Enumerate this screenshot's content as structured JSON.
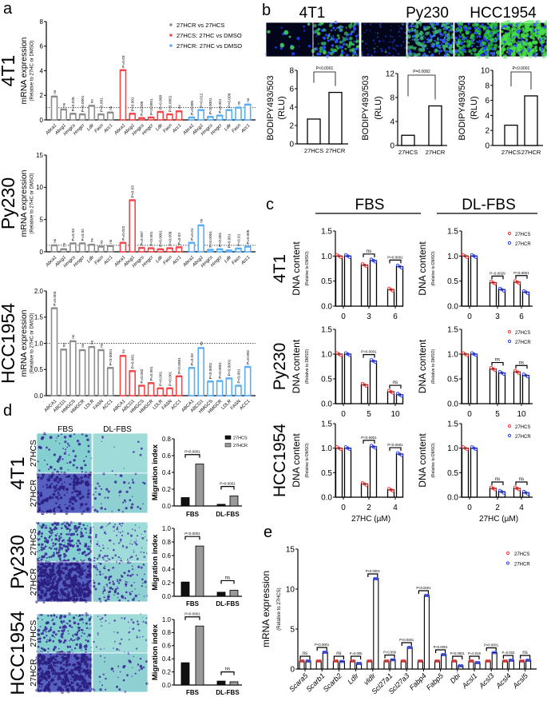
{
  "panel_labels": {
    "a": "a",
    "b": "b",
    "c": "c",
    "d": "d",
    "e": "e"
  },
  "chart_data": [
    {
      "id": "a",
      "type": "bar",
      "ylabel": "mRNA expression",
      "ylabel_sub": "(Relative to 27HC or DMSO)",
      "reference_line": 1,
      "legend": [
        {
          "name": "27HCR vs 27HCS",
          "color": "#8c8c8c"
        },
        {
          "name": "27HCS: 27HC vs DMSO",
          "color": "#f4474a"
        },
        {
          "name": "27HCR: 27HC vs DMSO",
          "color": "#5aaef5"
        }
      ],
      "rows": [
        {
          "cell_line": "4T1",
          "ylim": [
            0,
            8
          ],
          "ticks": [
            "0",
            "2",
            "4",
            "6",
            "8"
          ],
          "italic": true,
          "genes": [
            "Abca1",
            "Abcg1",
            "Hmgcs",
            "Hmgcr",
            "Ldlr",
            "Fasn",
            "Acc1"
          ],
          "series": [
            {
              "values": [
                1.9,
                0.85,
                0.5,
                0.45,
                1.15,
                0.45,
                0.6
              ],
              "p": [
                "ns",
                "ns",
                "P=0.026",
                "P<0.0001",
                "ns",
                "P<0.001",
                "ns"
              ]
            },
            {
              "values": [
                4.05,
                0.5,
                0.15,
                0.2,
                0.65,
                0.45,
                0.7
              ],
              "p": [
                "P=0.03",
                "P=0.001",
                "P=0.005",
                "P<0.0001",
                "P=0.008",
                "P<0.0001",
                "ns"
              ]
            },
            {
              "values": [
                0.2,
                0.8,
                0.25,
                0.35,
                0.8,
                1.0,
                1.25
              ],
              "p": [
                "P=0.005",
                "P=0.012",
                "P<0.0001",
                "P=0.001",
                "P=0.009",
                "ns",
                "ns"
              ]
            }
          ]
        },
        {
          "cell_line": "Py230",
          "ylim": [
            0,
            15
          ],
          "ticks": [
            "0",
            "5",
            "10",
            "15"
          ],
          "italic": true,
          "genes": [
            "Abca1",
            "Abcg1",
            "Hmgcs",
            "Hmgcr",
            "Ldlr",
            "Fasn",
            "Acc1"
          ],
          "series": [
            {
              "values": [
                1.0,
                0.4,
                1.3,
                1.3,
                1.1,
                0.8,
                0.9
              ],
              "p": [
                "ns",
                "ns",
                "P=0.03",
                "P=0.02",
                "ns",
                "ns",
                "ns"
              ]
            },
            {
              "values": [
                1.4,
                8.0,
                0.6,
                0.55,
                0.4,
                0.55,
                0.7
              ],
              "p": [
                "P=0.022",
                "P=0.03",
                "P=0.007",
                "P<0.001",
                "P<0.0001",
                "P=0.009",
                "P=0.02"
              ]
            },
            {
              "values": [
                1.4,
                4.1,
                0.3,
                0.4,
                0.2,
                0.5,
                0.8
              ],
              "p": [
                "P=0.01",
                "ns",
                "P<0.0001",
                "P<0.001",
                "P<0.001",
                "P=0.01",
                "P=0.005"
              ]
            }
          ]
        },
        {
          "cell_line": "HCC1954",
          "ylim": [
            0,
            2.0
          ],
          "ticks": [
            "0.0",
            "0.5",
            "1.0",
            "1.5",
            "2.0"
          ],
          "italic": false,
          "genes": [
            "ABCA1",
            "ABCG1",
            "HMGCS",
            "HMGCR",
            "LDLR",
            "FASN",
            "ACC1"
          ],
          "series": [
            {
              "values": [
                1.67,
                0.88,
                1.04,
                0.87,
                0.93,
                0.87,
                0.53
              ],
              "p": [
                "P=0.003",
                "ns",
                "ns",
                "ns",
                "ns",
                "ns",
                "P<0.0001"
              ]
            },
            {
              "values": [
                0.76,
                0.47,
                0.19,
                0.24,
                0.14,
                0.14,
                0.37
              ],
              "p": [
                "ns",
                "P=0.001",
                "P=0.002",
                "P=0.001",
                "P=0.001",
                "P<0.001",
                "P<0.0001"
              ]
            },
            {
              "values": [
                0.53,
                0.91,
                0.27,
                0.28,
                0.33,
                0.19,
                0.55
              ],
              "p": [
                "P=0.02",
                "ns",
                "P<0.0001",
                "P<0.0001",
                "P<0.0001",
                "P<0.001",
                "P=0.002"
              ]
            }
          ]
        }
      ]
    },
    {
      "id": "b",
      "type": "bar",
      "ylabel": "BODIPY493/503",
      "ylabel_sub": "(RLU)",
      "categories": [
        "27HCS",
        "27HCR"
      ],
      "charts": [
        {
          "cell_line": "4T1",
          "ylim": [
            0,
            8
          ],
          "ticks": [
            "0",
            "2",
            "4",
            "6",
            "8"
          ],
          "values": [
            2.7,
            5.6
          ],
          "p": "P<0.0001"
        },
        {
          "cell_line": "Py230",
          "ylim": [
            0,
            12
          ],
          "ticks": [
            "0",
            "4",
            "8",
            "12"
          ],
          "values": [
            1.7,
            6.6
          ],
          "p": "P=0.0082"
        },
        {
          "cell_line": "HCC1954",
          "ylim": [
            0,
            10
          ],
          "ticks": [
            "0",
            "2",
            "4",
            "6",
            "8",
            "10"
          ],
          "values": [
            2.7,
            6.6
          ],
          "p": "P<0.0001"
        }
      ]
    },
    {
      "id": "c",
      "type": "bar",
      "conditions": [
        "FBS",
        "DL-FBS"
      ],
      "ylabel": "DNA content",
      "ylabel_sub": "(Relative to DMSO)",
      "xlabel": "27HC (µM)",
      "ylim": [
        0,
        1.5
      ],
      "ticks": [
        "0.0",
        "0.5",
        "1.0",
        "1.5"
      ],
      "legend": [
        {
          "name": "27HCS",
          "color": "#ff3030"
        },
        {
          "name": "27HCR",
          "color": "#2a3cff"
        }
      ],
      "rows": [
        {
          "cell_line": "4T1",
          "x": [
            "0",
            "3",
            "6"
          ],
          "charts": [
            {
              "condition": "FBS",
              "27HCS": [
                1.0,
                0.82,
                0.33
              ],
              "27HCR": [
                1.0,
                0.91,
                0.79
              ],
              "p": [
                "",
                "ns",
                "P<0.0001"
              ]
            },
            {
              "condition": "DL-FBS",
              "27HCS": [
                1.0,
                0.47,
                0.48
              ],
              "27HCR": [
                1.0,
                0.33,
                0.28
              ],
              "p": [
                "",
                "P=0.0029",
                "P<0.0001"
              ]
            }
          ]
        },
        {
          "cell_line": "Py230",
          "x": [
            "0",
            "5",
            "10"
          ],
          "charts": [
            {
              "condition": "FBS",
              "27HCS": [
                1.0,
                0.38,
                0.24
              ],
              "27HCR": [
                1.0,
                0.86,
                0.18
              ],
              "p": [
                "",
                "P<0.0001",
                "ns"
              ]
            },
            {
              "condition": "DL-FBS",
              "27HCS": [
                1.0,
                0.7,
                0.64
              ],
              "27HCR": [
                1.0,
                0.62,
                0.57
              ],
              "p": [
                "",
                "ns",
                "ns"
              ]
            }
          ]
        },
        {
          "cell_line": "HCC1954",
          "x": [
            "0",
            "2",
            "4"
          ],
          "charts": [
            {
              "condition": "FBS",
              "27HCS": [
                1.0,
                0.27,
                0.15
              ],
              "27HCR": [
                1.0,
                1.03,
                0.88
              ],
              "p": [
                "",
                "P<0.0001",
                "P<0.0001"
              ]
            },
            {
              "condition": "DL-FBS",
              "27HCS": [
                1.0,
                0.18,
                0.18
              ],
              "27HCR": [
                1.0,
                0.11,
                0.09
              ],
              "p": [
                "",
                "ns",
                "ns"
              ]
            }
          ]
        }
      ]
    },
    {
      "id": "d",
      "type": "bar",
      "image_columns": [
        "FBS",
        "DL-FBS"
      ],
      "image_rows": [
        "27HCS",
        "27HCR"
      ],
      "ylabel": "Migration index",
      "categories": [
        "FBS",
        "DL-FBS"
      ],
      "legend": [
        {
          "name": "27HCS",
          "color": "#111111"
        },
        {
          "name": "27HCR",
          "color": "#9a9a9a"
        }
      ],
      "charts": [
        {
          "cell_line": "4T1",
          "ylim": [
            0,
            0.8
          ],
          "ticks": [
            "0.0",
            "0.2",
            "0.4",
            "0.6",
            "0.8"
          ],
          "27HCS": [
            0.1,
            0.02
          ],
          "27HCR": [
            0.5,
            0.12
          ],
          "p": [
            "P<0.0001",
            "P<0.0001"
          ]
        },
        {
          "cell_line": "Py230",
          "ylim": [
            0,
            1.0
          ],
          "ticks": [
            "0.0",
            "0.2",
            "0.4",
            "0.6",
            "0.8",
            "1.0"
          ],
          "27HCS": [
            0.21,
            0.06
          ],
          "27HCR": [
            0.74,
            0.09
          ],
          "p": [
            "P<0.0001",
            "ns"
          ]
        },
        {
          "cell_line": "HCC1954",
          "ylim": [
            0,
            1.0
          ],
          "ticks": [
            "0.0",
            "0.2",
            "0.4",
            "0.6",
            "0.8",
            "1.0"
          ],
          "27HCS": [
            0.34,
            0.06
          ],
          "27HCR": [
            0.9,
            0.05
          ],
          "p": [
            "P<0.0001",
            "ns"
          ]
        }
      ]
    },
    {
      "id": "e",
      "type": "bar",
      "ylabel": "mRNA expression",
      "ylabel_sub": "(Relative to 27HCS)",
      "ylim": [
        0,
        15
      ],
      "ticks": [
        "0",
        "5",
        "10",
        "15"
      ],
      "legend": [
        {
          "name": "27HCS",
          "color": "#ff3030"
        },
        {
          "name": "27HCR",
          "color": "#2a3cff"
        }
      ],
      "categories": [
        "Scara5",
        "Scarb1",
        "Scarb2",
        "Ldlr",
        "vldlr",
        "Scl27a1",
        "Scl27a3",
        "Fabp4",
        "Fabp5",
        "Dbi",
        "Acsl1",
        "Acsl3",
        "Acsl4",
        "Acsl5"
      ],
      "27HCS": [
        1,
        1,
        1,
        1,
        1,
        1,
        1,
        1,
        1,
        1,
        1,
        1,
        1,
        1
      ],
      "27HCR": [
        1.0,
        2.1,
        0.95,
        0.7,
        11.3,
        1.15,
        2.7,
        9.2,
        1.8,
        0.4,
        0.8,
        2.05,
        1.1,
        1.1
      ],
      "p": [
        "ns",
        "P<0.0001",
        "ns",
        "P=0.005",
        "P<0.0001",
        "P=0.009",
        "P<0.0001",
        "P<0.0001",
        "P<0.0001",
        "P<0.0001",
        "P=0.019",
        "P<0.0001",
        "P=0.003",
        "ns"
      ]
    }
  ]
}
